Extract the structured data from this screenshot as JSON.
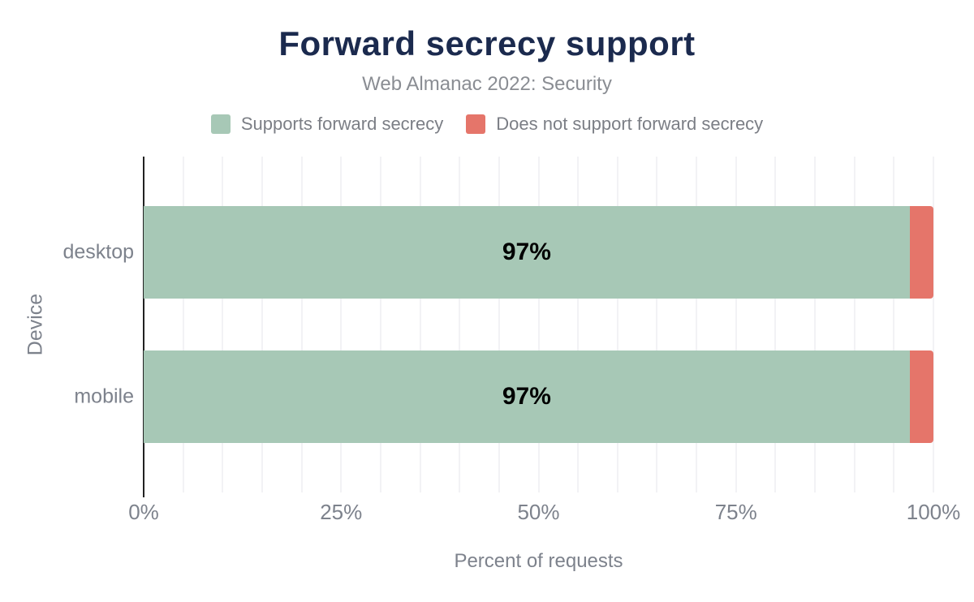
{
  "chart": {
    "title": "Forward secrecy support",
    "subtitle": "Web Almanac 2022: Security"
  },
  "chart_data": {
    "type": "bar",
    "orientation": "horizontal",
    "stacked": true,
    "title": "Forward secrecy support",
    "subtitle": "Web Almanac 2022: Security",
    "categories": [
      "desktop",
      "mobile"
    ],
    "series": [
      {
        "name": "Supports forward secrecy",
        "color": "#a7c8b6",
        "values": [
          97,
          97
        ]
      },
      {
        "name": "Does not support forward secrecy",
        "color": "#e5756a",
        "values": [
          3,
          3
        ]
      }
    ],
    "bar_labels": [
      "97%",
      "97%"
    ],
    "xlabel": "Percent of requests",
    "ylabel": "Device",
    "xlim": [
      0,
      100
    ],
    "x_ticks": [
      {
        "value": 0,
        "label": "0%"
      },
      {
        "value": 25,
        "label": "25%"
      },
      {
        "value": 50,
        "label": "50%"
      },
      {
        "value": 75,
        "label": "75%"
      },
      {
        "value": 100,
        "label": "100%"
      }
    ],
    "minor_grid_step": 5,
    "grid": true,
    "legend_position": "top"
  },
  "colors": {
    "title": "#1b2a4e",
    "subtitle": "#8a8d93",
    "legend_text": "#7b7e85",
    "axis_label": "#7d828c",
    "grid": "#f2f2f5",
    "axis_line": "#222222",
    "bar_label": "#000000",
    "background": "#ffffff"
  }
}
